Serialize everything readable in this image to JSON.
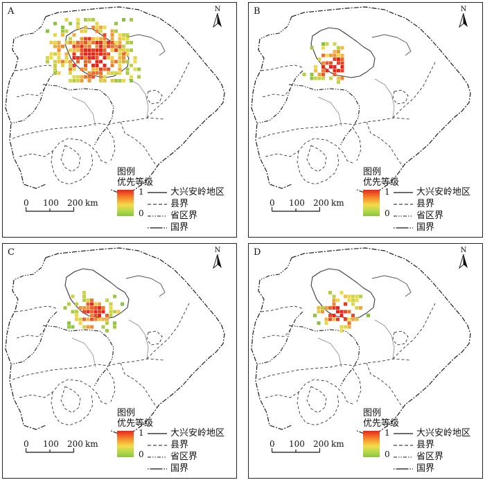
{
  "figure": {
    "panels": [
      {
        "label": "A",
        "cluster": "A"
      },
      {
        "label": "B",
        "cluster": "B"
      },
      {
        "label": "C",
        "cluster": "C"
      },
      {
        "label": "D",
        "cluster": "D"
      }
    ]
  },
  "north_arrow": {
    "label": "N"
  },
  "legend": {
    "title": "图例",
    "subtitle": "优先等级",
    "ramp_max": "1",
    "ramp_min": "0",
    "items": [
      {
        "label": "大兴安岭地区",
        "style": "solid"
      },
      {
        "label": "县界",
        "style": "dashed"
      },
      {
        "label": "省区界",
        "style": "dashdot"
      },
      {
        "label": "国界",
        "style": "dashdot-solid"
      }
    ],
    "colors": {
      "high": "#e8251a",
      "mid": "#f3dc4a",
      "low": "#86c440"
    }
  },
  "scale_bar": {
    "ticks": [
      "0",
      "100",
      "200"
    ],
    "unit": "km"
  }
}
